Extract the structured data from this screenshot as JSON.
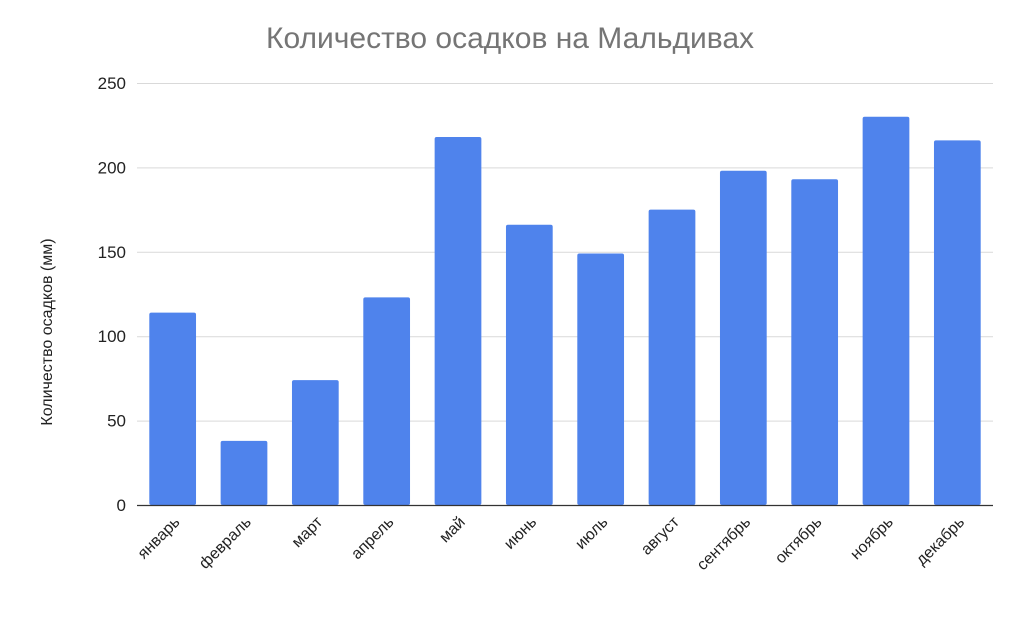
{
  "chart_data": {
    "type": "bar",
    "title": "Количество осадков на Мальдивах",
    "xlabel": "",
    "ylabel": "Количество осадков (мм)",
    "categories": [
      "январь",
      "февраль",
      "март",
      "апрель",
      "май",
      "июнь",
      "июль",
      "август",
      "сентябрь",
      "октябрь",
      "ноябрь",
      "декабрь"
    ],
    "values": [
      114,
      38,
      74,
      123,
      218,
      166,
      149,
      175,
      198,
      193,
      230,
      216
    ],
    "ylim": [
      0,
      250
    ],
    "yticks": [
      0,
      50,
      100,
      150,
      200,
      250
    ],
    "grid": true,
    "bar_color": "#4f83ec"
  }
}
